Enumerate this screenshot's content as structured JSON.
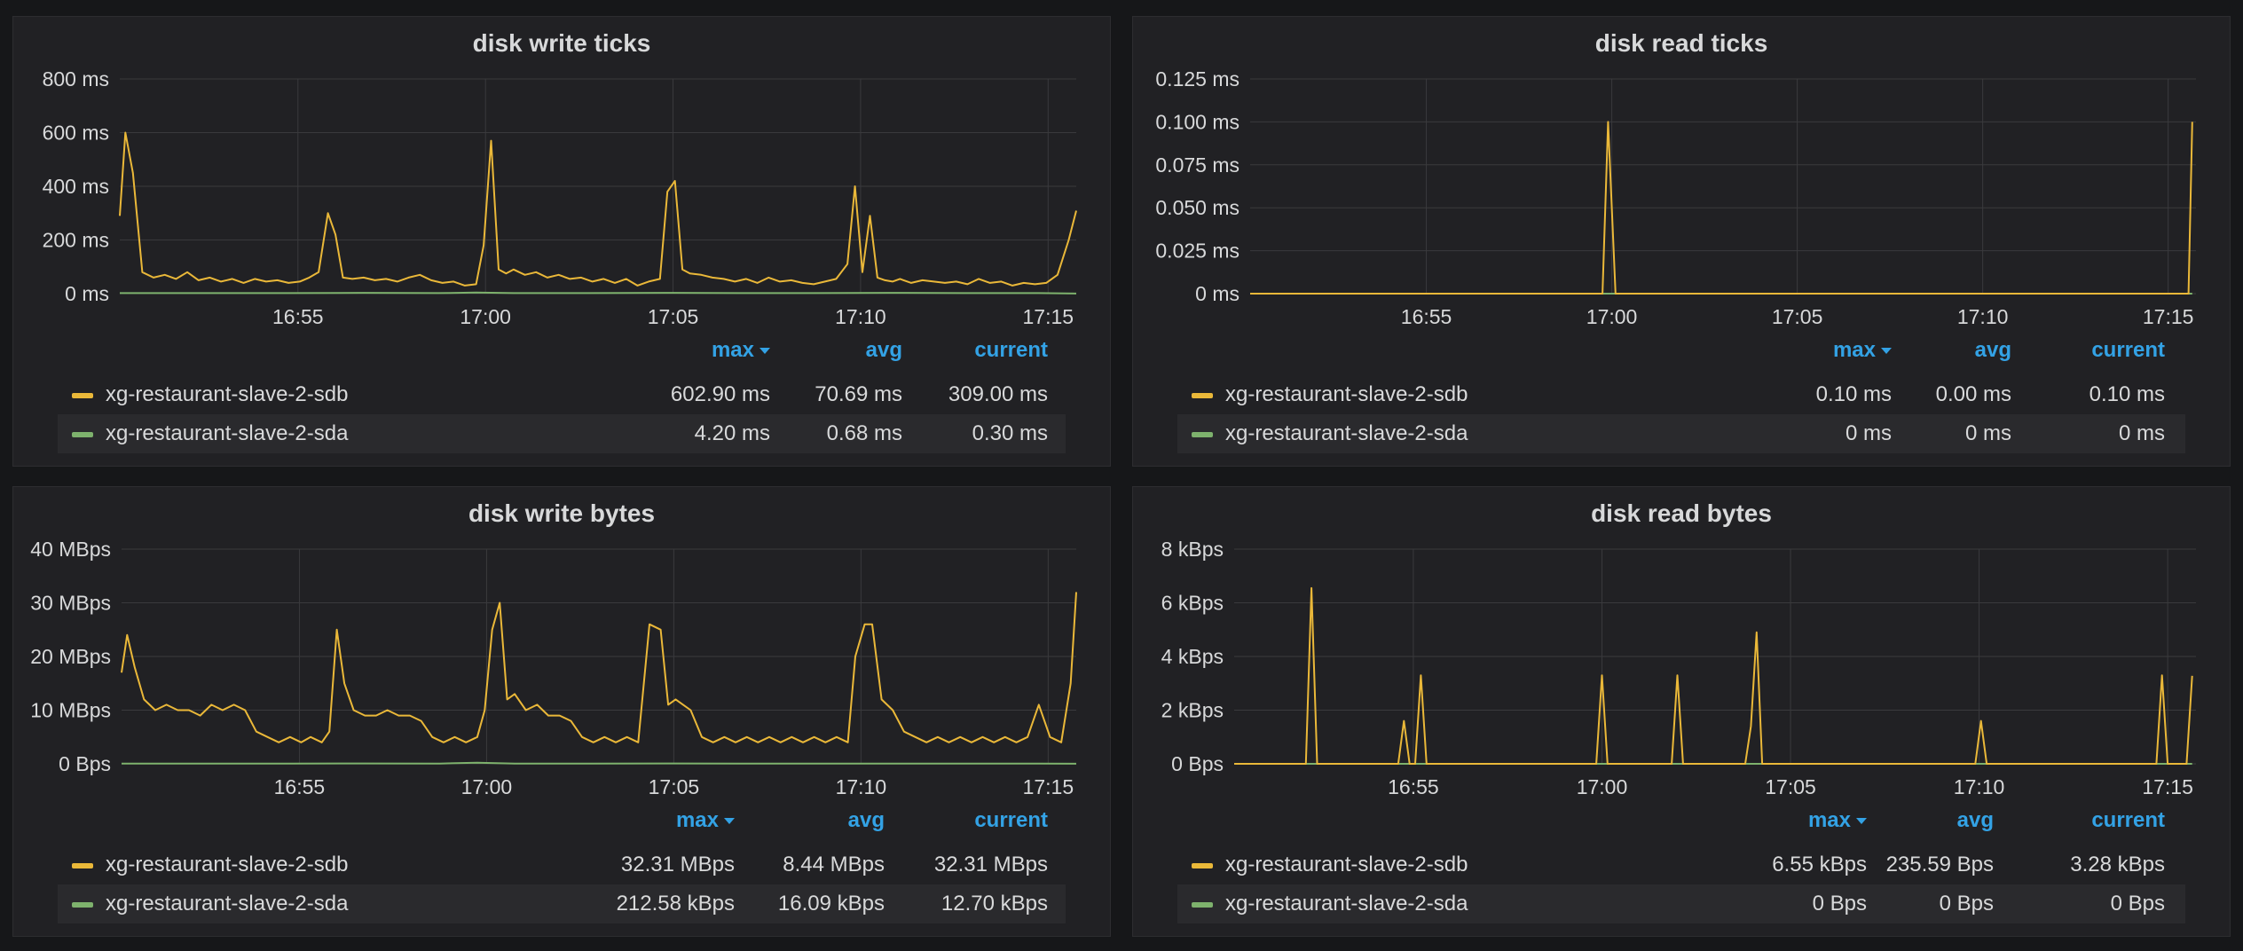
{
  "colors": {
    "sdb": "#eab839",
    "sda": "#7eb26d",
    "accent": "#33a2e5"
  },
  "legend_headers": {
    "max": "max",
    "avg": "avg",
    "current": "current"
  },
  "chart_data": [
    {
      "type": "line",
      "title": "disk write ticks",
      "x_ticks": [
        "16:55",
        "17:00",
        "17:05",
        "17:10",
        "17:15"
      ],
      "x_tick_pos": [
        12.25,
        17.25,
        22.25,
        27.25,
        32.25
      ],
      "x_range": [
        7.5,
        33
      ],
      "y_ticks": [
        "0 ms",
        "200 ms",
        "400 ms",
        "600 ms",
        "800 ms"
      ],
      "y_tick_values": [
        0,
        200,
        400,
        600,
        800
      ],
      "ylim": [
        0,
        800
      ],
      "series": [
        {
          "name": "xg-restaurant-slave-2-sdb",
          "color": "#eab839",
          "x": [
            7.5,
            7.65,
            7.85,
            8.1,
            8.4,
            8.7,
            9.0,
            9.3,
            9.6,
            9.9,
            10.2,
            10.5,
            10.8,
            11.1,
            11.4,
            11.7,
            12.0,
            12.3,
            12.55,
            12.8,
            13.05,
            13.25,
            13.45,
            13.7,
            14.0,
            14.3,
            14.6,
            14.9,
            15.2,
            15.5,
            15.8,
            16.1,
            16.4,
            16.7,
            17.0,
            17.2,
            17.4,
            17.6,
            17.8,
            18.0,
            18.3,
            18.6,
            18.9,
            19.2,
            19.5,
            19.8,
            20.1,
            20.4,
            20.7,
            21.0,
            21.3,
            21.6,
            21.9,
            22.1,
            22.3,
            22.5,
            22.7,
            23.0,
            23.3,
            23.6,
            23.9,
            24.2,
            24.5,
            24.8,
            25.1,
            25.4,
            25.7,
            26.0,
            26.3,
            26.6,
            26.9,
            27.1,
            27.3,
            27.5,
            27.7,
            27.9,
            28.1,
            28.3,
            28.6,
            28.9,
            29.2,
            29.5,
            29.8,
            30.1,
            30.4,
            30.7,
            31.0,
            31.3,
            31.6,
            31.9,
            32.2,
            32.5,
            32.8,
            33.0
          ],
          "values": [
            290,
            600,
            450,
            80,
            60,
            70,
            55,
            80,
            50,
            60,
            45,
            55,
            40,
            55,
            45,
            50,
            40,
            45,
            60,
            80,
            300,
            220,
            60,
            55,
            60,
            50,
            55,
            45,
            60,
            70,
            50,
            40,
            45,
            30,
            35,
            180,
            570,
            90,
            75,
            90,
            70,
            80,
            60,
            70,
            55,
            60,
            45,
            55,
            40,
            55,
            30,
            45,
            55,
            380,
            420,
            90,
            75,
            70,
            60,
            55,
            45,
            55,
            40,
            60,
            45,
            50,
            40,
            35,
            45,
            55,
            110,
            400,
            80,
            290,
            60,
            50,
            45,
            55,
            40,
            50,
            45,
            40,
            45,
            35,
            55,
            40,
            45,
            30,
            40,
            35,
            40,
            70,
            200,
            309
          ]
        },
        {
          "name": "xg-restaurant-slave-2-sda",
          "color": "#7eb26d",
          "x": [
            7.5,
            10,
            12,
            14,
            16,
            17,
            18,
            20,
            22,
            24,
            26,
            28,
            30,
            32,
            33
          ],
          "values": [
            2,
            2,
            2,
            3,
            2,
            4,
            2,
            2,
            3,
            2,
            2,
            3,
            2,
            2,
            0.3
          ]
        }
      ],
      "legend": [
        {
          "name": "xg-restaurant-slave-2-sdb",
          "max": "602.90 ms",
          "avg": "70.69 ms",
          "current": "309.00 ms"
        },
        {
          "name": "xg-restaurant-slave-2-sda",
          "max": "4.20 ms",
          "avg": "0.68 ms",
          "current": "0.30 ms"
        }
      ]
    },
    {
      "type": "line",
      "title": "disk read ticks",
      "x_ticks": [
        "16:55",
        "17:00",
        "17:05",
        "17:10",
        "17:15"
      ],
      "x_tick_pos": [
        12.25,
        17.25,
        22.25,
        27.25,
        32.25
      ],
      "x_range": [
        7.5,
        33
      ],
      "y_ticks": [
        "0 ms",
        "0.025 ms",
        "0.050 ms",
        "0.075 ms",
        "0.100 ms",
        "0.125 ms"
      ],
      "y_tick_values": [
        0,
        0.025,
        0.05,
        0.075,
        0.1,
        0.125
      ],
      "ylim": [
        0,
        0.125
      ],
      "series": [
        {
          "name": "xg-restaurant-slave-2-sdb",
          "color": "#eab839",
          "x": [
            7.5,
            17.0,
            17.15,
            17.35,
            32.65,
            32.8,
            32.9
          ],
          "values": [
            0,
            0,
            0.1,
            0,
            0,
            0,
            0.1
          ]
        },
        {
          "name": "xg-restaurant-slave-2-sda",
          "color": "#7eb26d",
          "x": [
            7.5,
            32.9
          ],
          "values": [
            0,
            0
          ]
        }
      ],
      "legend": [
        {
          "name": "xg-restaurant-slave-2-sdb",
          "max": "0.10 ms",
          "avg": "0.00 ms",
          "current": "0.10 ms"
        },
        {
          "name": "xg-restaurant-slave-2-sda",
          "max": "0 ms",
          "avg": "0 ms",
          "current": "0 ms"
        }
      ]
    },
    {
      "type": "line",
      "title": "disk write bytes",
      "x_ticks": [
        "16:55",
        "17:00",
        "17:05",
        "17:10",
        "17:15"
      ],
      "x_tick_pos": [
        12.25,
        17.25,
        22.25,
        27.25,
        32.25
      ],
      "x_range": [
        7.5,
        33
      ],
      "y_ticks": [
        "0 Bps",
        "10 MBps",
        "20 MBps",
        "30 MBps",
        "40 MBps"
      ],
      "y_tick_values": [
        0,
        10,
        20,
        30,
        40
      ],
      "ylim": [
        0,
        40
      ],
      "series": [
        {
          "name": "xg-restaurant-slave-2-sdb",
          "color": "#eab839",
          "x": [
            7.5,
            7.65,
            7.85,
            8.1,
            8.4,
            8.7,
            9.0,
            9.3,
            9.6,
            9.9,
            10.2,
            10.5,
            10.8,
            11.1,
            11.4,
            11.7,
            12.0,
            12.3,
            12.55,
            12.85,
            13.05,
            13.25,
            13.45,
            13.7,
            14.0,
            14.3,
            14.6,
            14.9,
            15.2,
            15.5,
            15.8,
            16.1,
            16.4,
            16.7,
            17.0,
            17.2,
            17.4,
            17.6,
            17.8,
            18.0,
            18.3,
            18.6,
            18.9,
            19.2,
            19.5,
            19.8,
            20.1,
            20.4,
            20.7,
            21.0,
            21.3,
            21.6,
            21.9,
            22.1,
            22.3,
            22.5,
            22.7,
            23.0,
            23.3,
            23.6,
            23.9,
            24.2,
            24.5,
            24.8,
            25.1,
            25.4,
            25.7,
            26.0,
            26.3,
            26.6,
            26.9,
            27.1,
            27.35,
            27.55,
            27.8,
            28.1,
            28.4,
            28.7,
            29.0,
            29.3,
            29.6,
            29.9,
            30.2,
            30.5,
            30.8,
            31.1,
            31.4,
            31.7,
            32.0,
            32.3,
            32.6,
            32.85,
            33.0
          ],
          "values": [
            17,
            24,
            18,
            12,
            10,
            11,
            10,
            10,
            9,
            11,
            10,
            11,
            10,
            6,
            5,
            4,
            5,
            4,
            5,
            4,
            6,
            25,
            15,
            10,
            9,
            9,
            10,
            9,
            9,
            8,
            5,
            4,
            5,
            4,
            5,
            10,
            25,
            30,
            12,
            13,
            10,
            11,
            9,
            9,
            8,
            5,
            4,
            5,
            4,
            5,
            4,
            26,
            25,
            11,
            12,
            11,
            10,
            5,
            4,
            5,
            4,
            5,
            4,
            5,
            4,
            5,
            4,
            5,
            4,
            5,
            4,
            20,
            26,
            26,
            12,
            10,
            6,
            5,
            4,
            5,
            4,
            5,
            4,
            5,
            4,
            5,
            4,
            5,
            11,
            5,
            4,
            15,
            32
          ]
        },
        {
          "name": "xg-restaurant-slave-2-sda",
          "color": "#7eb26d",
          "x": [
            7.5,
            10,
            12,
            14,
            16,
            17,
            18,
            20,
            22,
            24,
            26,
            28,
            30,
            32,
            33
          ],
          "values": [
            0.05,
            0.05,
            0.04,
            0.06,
            0.05,
            0.21,
            0.05,
            0.04,
            0.06,
            0.05,
            0.04,
            0.05,
            0.04,
            0.05,
            0.0127
          ]
        }
      ],
      "legend": [
        {
          "name": "xg-restaurant-slave-2-sdb",
          "max": "32.31 MBps",
          "avg": "8.44 MBps",
          "current": "32.31 MBps"
        },
        {
          "name": "xg-restaurant-slave-2-sda",
          "max": "212.58 kBps",
          "avg": "16.09 kBps",
          "current": "12.70 kBps"
        }
      ]
    },
    {
      "type": "line",
      "title": "disk read bytes",
      "x_ticks": [
        "16:55",
        "17:00",
        "17:05",
        "17:10",
        "17:15"
      ],
      "x_tick_pos": [
        12.25,
        17.25,
        22.25,
        27.25,
        32.25
      ],
      "x_range": [
        7.5,
        33
      ],
      "y_ticks": [
        "0 Bps",
        "2 kBps",
        "4 kBps",
        "6 kBps",
        "8 kBps"
      ],
      "y_tick_values": [
        0,
        2,
        4,
        6,
        8
      ],
      "ylim": [
        0,
        8
      ],
      "series": [
        {
          "name": "xg-restaurant-slave-2-sdb",
          "color": "#eab839",
          "x": [
            7.5,
            9.4,
            9.55,
            9.7,
            11.85,
            12.0,
            12.15,
            12.3,
            12.45,
            12.6,
            17.1,
            17.25,
            17.4,
            19.1,
            19.25,
            19.4,
            21.05,
            21.2,
            21.35,
            21.5,
            27.15,
            27.3,
            27.45,
            31.95,
            32.1,
            32.25,
            32.5,
            32.75,
            32.9
          ],
          "values": [
            0,
            0,
            6.55,
            0,
            0,
            1.6,
            0,
            0,
            3.3,
            0,
            0,
            3.3,
            0,
            0,
            3.3,
            0,
            0,
            1.4,
            4.9,
            0,
            0,
            1.6,
            0,
            0,
            3.3,
            0,
            0,
            0,
            3.28
          ]
        },
        {
          "name": "xg-restaurant-slave-2-sda",
          "color": "#7eb26d",
          "x": [
            7.5,
            32.9
          ],
          "values": [
            0,
            0
          ]
        }
      ],
      "legend": [
        {
          "name": "xg-restaurant-slave-2-sdb",
          "max": "6.55 kBps",
          "avg": "235.59 Bps",
          "current": "3.28 kBps"
        },
        {
          "name": "xg-restaurant-slave-2-sda",
          "max": "0 Bps",
          "avg": "0 Bps",
          "current": "0 Bps"
        }
      ]
    }
  ]
}
